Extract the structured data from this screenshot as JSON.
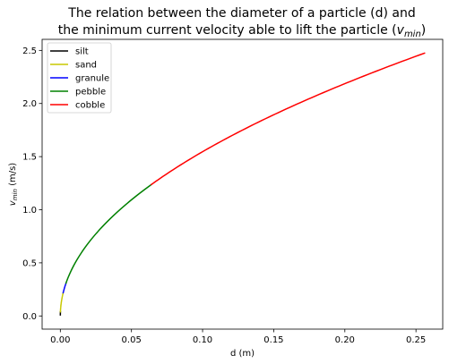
{
  "chart_data": {
    "type": "line",
    "title_line1": "The relation between the diameter of a particle (d) and",
    "title_line2_prefix": "the minimum current velocity able to lift the particle (",
    "title_line2_var": "v",
    "title_line2_sub": "min",
    "title_line2_suffix": ")",
    "xlabel": "d (m)",
    "ylabel_var": "v",
    "ylabel_sub": "min",
    "ylabel_unit": " (m/s)",
    "xlim": [
      -0.0128,
      0.2688
    ],
    "ylim": [
      -0.124,
      2.604
    ],
    "xticks": [
      "0.00",
      "0.05",
      "0.10",
      "0.15",
      "0.20",
      "0.25"
    ],
    "yticks": [
      "0.0",
      "0.5",
      "1.0",
      "1.5",
      "2.0",
      "2.5"
    ],
    "grid": false,
    "legend_position": "top-left",
    "model": "v = 4.89 * sqrt(d)",
    "series": [
      {
        "name": "silt",
        "color": "#000000",
        "d_range": [
          3.9e-06,
          6.25e-05
        ],
        "x": [
          3.9e-06,
          2e-05,
          6.25e-05
        ],
        "y": [
          0.0097,
          0.0219,
          0.0387
        ]
      },
      {
        "name": "sand",
        "color": "#c8c800",
        "d_range": [
          6.25e-05,
          0.002
        ],
        "x": [
          6.25e-05,
          0.0005,
          0.001,
          0.002
        ],
        "y": [
          0.0387,
          0.109,
          0.155,
          0.219
        ]
      },
      {
        "name": "granule",
        "color": "#0000ff",
        "d_range": [
          0.002,
          0.004
        ],
        "x": [
          0.002,
          0.003,
          0.004
        ],
        "y": [
          0.219,
          0.268,
          0.309
        ]
      },
      {
        "name": "pebble",
        "color": "#008000",
        "d_range": [
          0.004,
          0.064
        ],
        "x": [
          0.004,
          0.016,
          0.032,
          0.048,
          0.064
        ],
        "y": [
          0.309,
          0.619,
          0.875,
          1.071,
          1.237
        ]
      },
      {
        "name": "cobble",
        "color": "#ff0000",
        "d_range": [
          0.064,
          0.256
        ],
        "x": [
          0.064,
          0.1,
          0.15,
          0.2,
          0.256
        ],
        "y": [
          1.237,
          1.546,
          1.894,
          2.187,
          2.474
        ]
      }
    ]
  }
}
